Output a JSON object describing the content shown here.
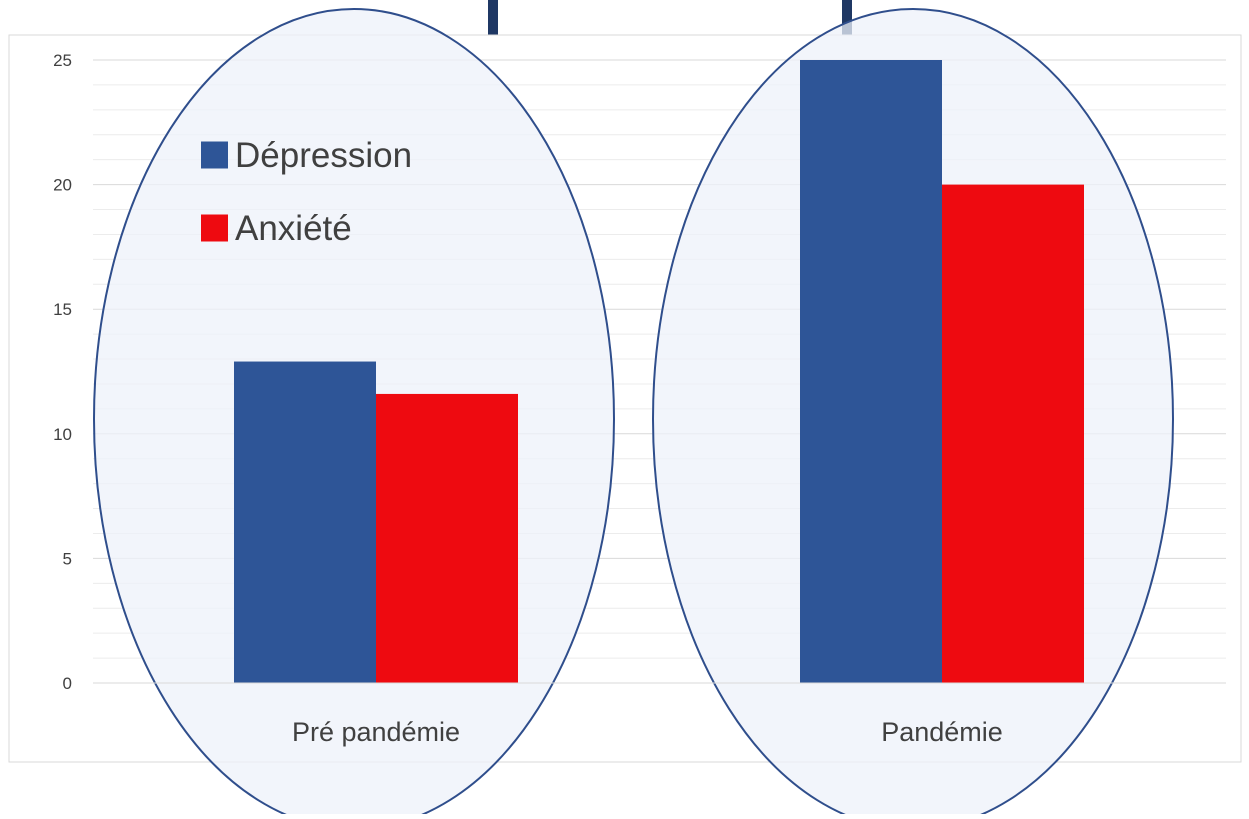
{
  "chart_data": {
    "type": "bar",
    "categories": [
      "Pré pandémie",
      "Pandémie"
    ],
    "series": [
      {
        "name": "Dépression",
        "color": "#2e5597",
        "values": [
          12.9,
          25
        ]
      },
      {
        "name": "Anxiété",
        "color": "#ee0a10",
        "values": [
          11.6,
          20
        ]
      }
    ],
    "y_ticks": [
      "0",
      "5",
      "10",
      "15",
      "20",
      "25"
    ],
    "ylim": [
      0,
      25
    ],
    "grid": true,
    "legend": "top-left",
    "title": "",
    "xlabel": "",
    "ylabel": ""
  },
  "colors": {
    "ellipse_fill": "#edf1fa",
    "ellipse_stroke": "#2f4e8c",
    "title_accent": "#1f3864"
  }
}
